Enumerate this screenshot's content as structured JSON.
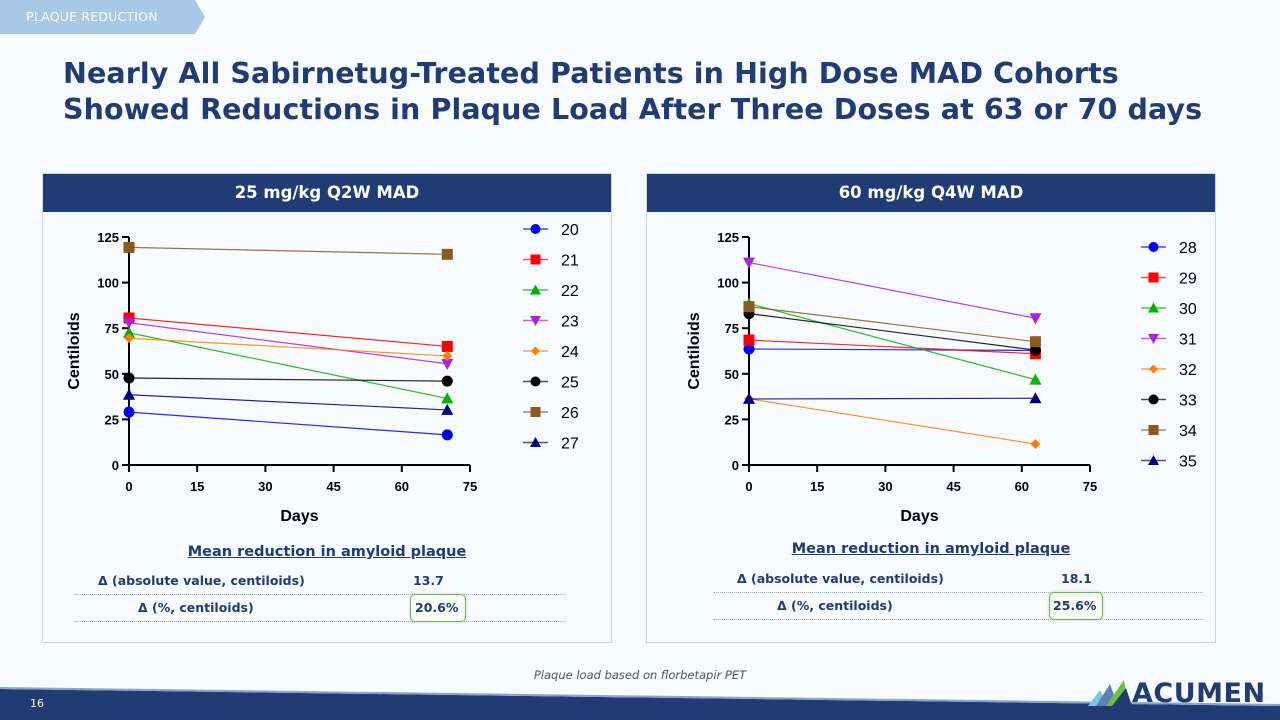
{
  "section_tag": "PLAQUE REDUCTION",
  "title": "Nearly All Sabirnetug-Treated Patients in High Dose MAD Cohorts Showed Reductions in Plaque Load After Three Doses at 63 or 70 days",
  "panels": [
    {
      "header": "25 mg/kg Q2W MAD",
      "stats": {
        "title": "Mean reduction in amyloid plaque",
        "rows": [
          {
            "label": "Δ (absolute value, centiloids)",
            "value": "13.7",
            "highlighted": false
          },
          {
            "label": "Δ (%, centiloids)",
            "value": "20.6%",
            "highlighted": true
          }
        ]
      }
    },
    {
      "header": "60 mg/kg Q4W MAD",
      "stats": {
        "title": "Mean reduction in amyloid plaque",
        "rows": [
          {
            "label": "Δ (absolute value, centiloids)",
            "value": "18.1",
            "highlighted": false
          },
          {
            "label": "Δ (%, centiloids)",
            "value": "25.6%",
            "highlighted": true
          }
        ]
      }
    }
  ],
  "footnote": "Plaque load based on florbetapir PET",
  "page_number": "16",
  "logo_text": "ACUMEN",
  "colors": {
    "brand_navy": "#213c74",
    "tag_blue": "#a7c8e6",
    "highlight_green": "#6db454"
  },
  "chart_data": [
    {
      "type": "line",
      "title": "25 mg/kg Q2W MAD",
      "xlabel": "Days",
      "ylabel": "Centiloids",
      "xlim": [
        0,
        75
      ],
      "ylim": [
        0,
        125
      ],
      "xticks": [
        0,
        15,
        30,
        45,
        60,
        75
      ],
      "yticks": [
        0,
        25,
        50,
        75,
        100,
        125
      ],
      "grid": false,
      "legend_position": "right",
      "series": [
        {
          "name": "20",
          "color": "#0000ff",
          "marker": "circle",
          "x": [
            0,
            70
          ],
          "y": [
            29,
            16.5
          ]
        },
        {
          "name": "21",
          "color": "#ff0000",
          "marker": "square",
          "x": [
            0,
            70
          ],
          "y": [
            80.6,
            65
          ]
        },
        {
          "name": "22",
          "color": "#00b400",
          "marker": "triangle-up",
          "x": [
            0,
            70
          ],
          "y": [
            72.5,
            36.5
          ]
        },
        {
          "name": "23",
          "color": "#b020e0",
          "marker": "triangle-down",
          "x": [
            0,
            70
          ],
          "y": [
            78,
            55.5
          ]
        },
        {
          "name": "24",
          "color": "#ff8000",
          "marker": "diamond",
          "x": [
            0,
            70
          ],
          "y": [
            69.5,
            59.8
          ]
        },
        {
          "name": "25",
          "color": "#000000",
          "marker": "circle",
          "x": [
            0,
            70
          ],
          "y": [
            47.7,
            46
          ]
        },
        {
          "name": "26",
          "color": "#8b5a1e",
          "marker": "square",
          "x": [
            0,
            70
          ],
          "y": [
            119.3,
            115.5
          ]
        },
        {
          "name": "27",
          "color": "#000080",
          "marker": "triangle-up",
          "x": [
            0,
            70
          ],
          "y": [
            38.5,
            30.2
          ]
        }
      ]
    },
    {
      "type": "line",
      "title": "60 mg/kg Q4W MAD",
      "xlabel": "Days",
      "ylabel": "Centiloids",
      "xlim": [
        0,
        75
      ],
      "ylim": [
        0,
        125
      ],
      "xticks": [
        0,
        15,
        30,
        45,
        60,
        75
      ],
      "yticks": [
        0,
        25,
        50,
        75,
        100,
        125
      ],
      "grid": false,
      "legend_position": "right",
      "series": [
        {
          "name": "28",
          "color": "#0000ff",
          "marker": "circle",
          "x": [
            0,
            63
          ],
          "y": [
            63.6,
            62.8
          ]
        },
        {
          "name": "29",
          "color": "#ff0000",
          "marker": "square",
          "x": [
            0,
            63
          ],
          "y": [
            68.5,
            61
          ]
        },
        {
          "name": "30",
          "color": "#00b400",
          "marker": "triangle-up",
          "x": [
            0,
            63
          ],
          "y": [
            88.5,
            46.8
          ]
        },
        {
          "name": "31",
          "color": "#b020e0",
          "marker": "triangle-down",
          "x": [
            0,
            63
          ],
          "y": [
            111,
            80.5
          ]
        },
        {
          "name": "32",
          "color": "#ff8000",
          "marker": "diamond",
          "x": [
            0,
            63
          ],
          "y": [
            36.3,
            11.5
          ]
        },
        {
          "name": "33",
          "color": "#000000",
          "marker": "circle",
          "x": [
            0,
            63
          ],
          "y": [
            83,
            63
          ]
        },
        {
          "name": "34",
          "color": "#8b5a1e",
          "marker": "square",
          "x": [
            0,
            63
          ],
          "y": [
            86.8,
            67.6
          ]
        },
        {
          "name": "35",
          "color": "#000080",
          "marker": "triangle-up",
          "x": [
            0,
            63
          ],
          "y": [
            36.2,
            36.6
          ]
        }
      ]
    }
  ]
}
